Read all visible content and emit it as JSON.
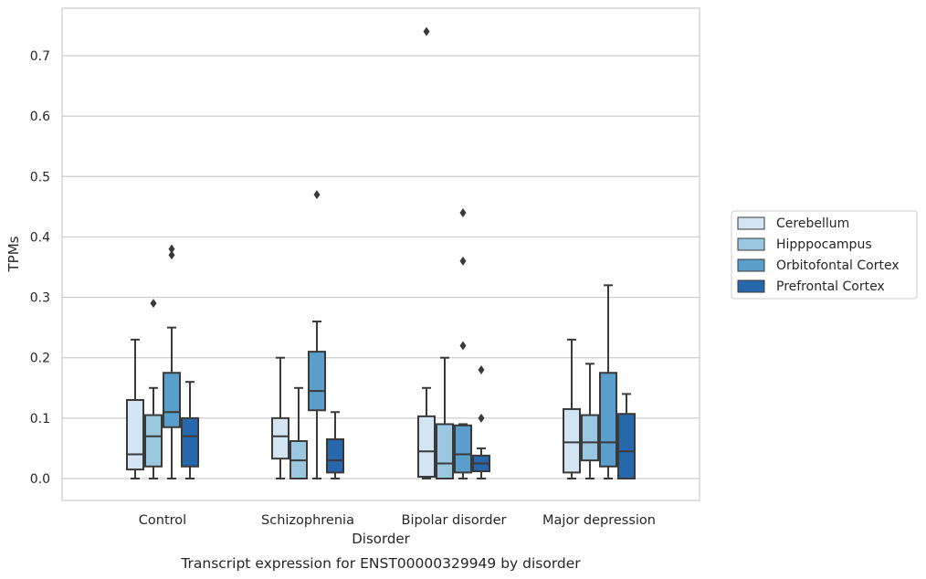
{
  "chart_data": {
    "type": "box",
    "title": "Transcript expression for ENST00000329949 by disorder",
    "xlabel": "Disorder",
    "ylabel": "TPMs",
    "ylim": [
      -0.037,
      0.778
    ],
    "yticks": [
      0.0,
      0.1,
      0.2,
      0.3,
      0.4,
      0.5,
      0.6,
      0.7
    ],
    "ytick_labels": [
      "0.0",
      "0.1",
      "0.2",
      "0.3",
      "0.4",
      "0.5",
      "0.6",
      "0.7"
    ],
    "grid": "horizontal",
    "legend_position": "right",
    "categories": [
      "Control",
      "Schizophrenia",
      "Bipolar disorder",
      "Major depression"
    ],
    "series": [
      {
        "name": "Cerebellum",
        "color": "#d3e4f3",
        "boxes": [
          {
            "whisker_low": 0.0,
            "q1": 0.015,
            "median": 0.04,
            "q3": 0.13,
            "whisker_high": 0.23,
            "outliers": []
          },
          {
            "whisker_low": 0.0,
            "q1": 0.033,
            "median": 0.07,
            "q3": 0.1,
            "whisker_high": 0.2,
            "outliers": []
          },
          {
            "whisker_low": 0.0,
            "q1": 0.003,
            "median": 0.045,
            "q3": 0.103,
            "whisker_high": 0.15,
            "outliers": [
              0.74
            ]
          },
          {
            "whisker_low": 0.0,
            "q1": 0.01,
            "median": 0.06,
            "q3": 0.115,
            "whisker_high": 0.23,
            "outliers": []
          }
        ]
      },
      {
        "name": "Hipppocampus",
        "color": "#9ac8e0",
        "boxes": [
          {
            "whisker_low": 0.0,
            "q1": 0.02,
            "median": 0.07,
            "q3": 0.105,
            "whisker_high": 0.15,
            "outliers": [
              0.29
            ]
          },
          {
            "whisker_low": 0.0,
            "q1": 0.0,
            "median": 0.03,
            "q3": 0.062,
            "whisker_high": 0.15,
            "outliers": []
          },
          {
            "whisker_low": 0.0,
            "q1": 0.0,
            "median": 0.025,
            "q3": 0.09,
            "whisker_high": 0.2,
            "outliers": []
          },
          {
            "whisker_low": 0.0,
            "q1": 0.03,
            "median": 0.06,
            "q3": 0.105,
            "whisker_high": 0.19,
            "outliers": []
          }
        ]
      },
      {
        "name": "Orbitofontal Cortex",
        "color": "#5a9fcc",
        "boxes": [
          {
            "whisker_low": 0.0,
            "q1": 0.085,
            "median": 0.11,
            "q3": 0.175,
            "whisker_high": 0.25,
            "outliers": [
              0.37,
              0.38
            ]
          },
          {
            "whisker_low": 0.0,
            "q1": 0.113,
            "median": 0.145,
            "q3": 0.21,
            "whisker_high": 0.26,
            "outliers": [
              0.47
            ]
          },
          {
            "whisker_low": 0.0,
            "q1": 0.01,
            "median": 0.04,
            "q3": 0.088,
            "whisker_high": 0.09,
            "outliers": [
              0.22,
              0.36,
              0.44
            ]
          },
          {
            "whisker_low": 0.0,
            "q1": 0.02,
            "median": 0.06,
            "q3": 0.175,
            "whisker_high": 0.32,
            "outliers": []
          }
        ]
      },
      {
        "name": "Prefrontal Cortex",
        "color": "#2767ab",
        "boxes": [
          {
            "whisker_low": 0.0,
            "q1": 0.02,
            "median": 0.07,
            "q3": 0.1,
            "whisker_high": 0.16,
            "outliers": []
          },
          {
            "whisker_low": 0.0,
            "q1": 0.01,
            "median": 0.03,
            "q3": 0.065,
            "whisker_high": 0.11,
            "outliers": []
          },
          {
            "whisker_low": 0.0,
            "q1": 0.012,
            "median": 0.025,
            "q3": 0.038,
            "whisker_high": 0.05,
            "outliers": [
              0.1,
              0.18
            ]
          },
          {
            "whisker_low": 0.0,
            "q1": 0.0,
            "median": 0.045,
            "q3": 0.107,
            "whisker_high": 0.14,
            "outliers": []
          }
        ]
      }
    ]
  }
}
